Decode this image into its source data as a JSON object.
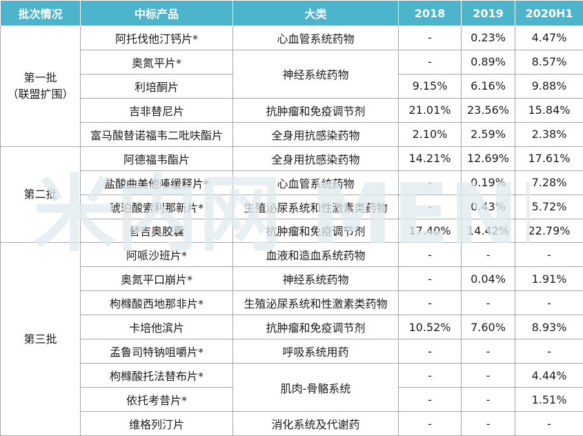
{
  "colors": {
    "header_bg": "#4cb5cc",
    "header_text": "#ffffff",
    "border": "#a6a6a6",
    "watermark": "#dfe9ef"
  },
  "header": [
    "批次情况",
    "中标产品",
    "大类",
    "2018",
    "2019",
    "2020H1"
  ],
  "watermark_text": "米内网 MENET",
  "groups": [
    {
      "batch": [
        "第一批",
        "（联盟扩围）"
      ]
    },
    {
      "batch": [
        "第二批"
      ]
    },
    {
      "batch": [
        "第三批"
      ]
    }
  ],
  "rows": [
    {
      "product": "阿托伐他汀钙片*",
      "category": "心血管系统药物",
      "y2018": "-",
      "y2019": "0.23%",
      "y2020h1": "4.47%"
    },
    {
      "product": "奥氮平片*",
      "category": "神经系统药物",
      "y2018": "-",
      "y2019": "0.89%",
      "y2020h1": "8.57%"
    },
    {
      "product": "利培酮片",
      "category": "",
      "y2018": "9.15%",
      "y2019": "6.16%",
      "y2020h1": "9.88%"
    },
    {
      "product": "吉非替尼片",
      "category": "抗肿瘤和免疫调节剂",
      "y2018": "21.01%",
      "y2019": "23.56%",
      "y2020h1": "15.84%"
    },
    {
      "product": "富马酸替诺福韦二吡呋酯片",
      "category": "全身用抗感染药物",
      "y2018": "2.10%",
      "y2019": "2.59%",
      "y2020h1": "2.38%"
    },
    {
      "product": "阿德福韦酯片",
      "category": "全身用抗感染药物",
      "y2018": "14.21%",
      "y2019": "12.69%",
      "y2020h1": "17.61%"
    },
    {
      "product": "盐酸曲美他嗪缓释片*",
      "category": "心血管系统药物",
      "y2018": "-",
      "y2019": "0.19%",
      "y2020h1": "7.28%"
    },
    {
      "product": "琥珀酸索利那新片*",
      "category": "生殖泌尿系统和性激素类药物",
      "y2018": "-",
      "y2019": "0.43%",
      "y2020h1": "5.72%"
    },
    {
      "product": "替吉奥胶囊",
      "category": "抗肿瘤和免疫调节剂",
      "y2018": "17.40%",
      "y2019": "14.42%",
      "y2020h1": "22.79%"
    },
    {
      "product": "阿哌沙班片*",
      "category": "血液和造血系统药物",
      "y2018": "-",
      "y2019": "-",
      "y2020h1": "-"
    },
    {
      "product": "奥氮平口崩片*",
      "category": "神经系统药物",
      "y2018": "-",
      "y2019": "0.04%",
      "y2020h1": "1.91%"
    },
    {
      "product": "枸橼酸西地那非片*",
      "category": "生殖泌尿系统和性激素类药物",
      "y2018": "-",
      "y2019": "-",
      "y2020h1": "-"
    },
    {
      "product": "卡培他滨片",
      "category": "抗肿瘤和免疫调节剂",
      "y2018": "10.52%",
      "y2019": "7.60%",
      "y2020h1": "8.93%"
    },
    {
      "product": "孟鲁司特钠咀嚼片*",
      "category": "呼吸系统用药",
      "y2018": "-",
      "y2019": "-",
      "y2020h1": "-"
    },
    {
      "product": "枸橼酸托法替布片*",
      "category": "肌肉-骨骼系统",
      "y2018": "-",
      "y2019": "-",
      "y2020h1": "4.44%"
    },
    {
      "product": "依托考昔片*",
      "category": "",
      "y2018": "-",
      "y2019": "-",
      "y2020h1": "1.51%"
    },
    {
      "product": "维格列汀片",
      "category": "消化系统及代谢药",
      "y2018": "-",
      "y2019": "-",
      "y2020h1": "-"
    }
  ]
}
